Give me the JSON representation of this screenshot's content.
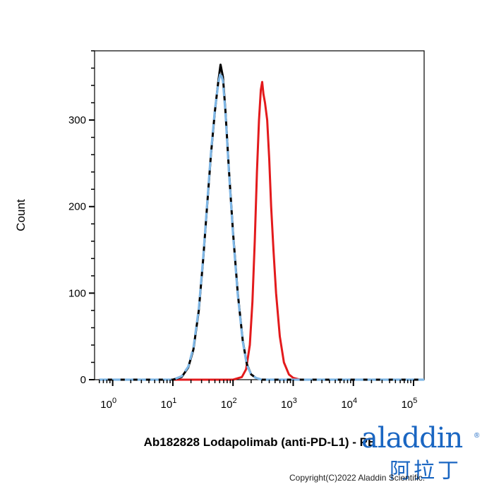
{
  "chart_data": {
    "type": "line",
    "title": "",
    "xlabel": "Ab182828 Lodapolimab (anti-PD-L1) - PE",
    "ylabel": "Count",
    "x_scale": "log",
    "xlim": [
      0.5,
      150000
    ],
    "ylim": [
      0,
      380
    ],
    "x_tick_labels": [
      {
        "value": 1,
        "base": "10",
        "exp": "0"
      },
      {
        "value": 10,
        "base": "10",
        "exp": "1"
      },
      {
        "value": 100,
        "base": "10",
        "exp": "2"
      },
      {
        "value": 1000,
        "base": "10",
        "exp": "3"
      },
      {
        "value": 10000,
        "base": "10",
        "exp": "4"
      },
      {
        "value": 100000,
        "base": "10",
        "exp": "5"
      }
    ],
    "y_ticks": [
      0,
      100,
      200,
      300
    ],
    "y_tick_labels": [
      "0",
      "100",
      "200",
      "300"
    ],
    "grid": false,
    "legend": "none",
    "series": [
      {
        "color": "#e31a1c",
        "dash": "solid",
        "x": [
          0.6,
          50,
          100,
          140,
          165,
          190,
          210,
          230,
          250,
          270,
          290,
          305,
          320,
          340,
          370,
          400,
          430,
          470,
          520,
          600,
          700,
          850,
          1000,
          1300,
          150000
        ],
        "y": [
          0,
          0,
          0,
          3,
          12,
          40,
          90,
          160,
          240,
          300,
          335,
          344,
          330,
          320,
          300,
          255,
          200,
          150,
          100,
          50,
          20,
          6,
          2,
          0,
          0
        ]
      },
      {
        "color": "#000000",
        "dash": "solid",
        "x": [
          0.6,
          10,
          14,
          18,
          22,
          27,
          32,
          37,
          43,
          50,
          57,
          62,
          68,
          75,
          85,
          100,
          120,
          145,
          170,
          200,
          240,
          300,
          350,
          150000
        ],
        "y": [
          0,
          0,
          3,
          14,
          35,
          80,
          140,
          200,
          260,
          310,
          345,
          364,
          350,
          310,
          245,
          170,
          100,
          45,
          18,
          6,
          2,
          0,
          0,
          0
        ]
      },
      {
        "color": "#7fb7e6",
        "dash": "dashed",
        "x": [
          0.6,
          10,
          14,
          18,
          22,
          27,
          32,
          37,
          43,
          50,
          57,
          62,
          68,
          75,
          85,
          100,
          120,
          145,
          170,
          200,
          240,
          300,
          350,
          150000
        ],
        "y": [
          0,
          0,
          4,
          15,
          37,
          82,
          142,
          202,
          262,
          312,
          343,
          355,
          345,
          308,
          243,
          168,
          98,
          44,
          17,
          6,
          2,
          0,
          0,
          0
        ]
      }
    ]
  },
  "logo": {
    "wordmark": "aladdin",
    "registered": "®",
    "chinese": "阿拉丁"
  },
  "copyright": "Copyright(C)2022 Aladdin Scientific."
}
